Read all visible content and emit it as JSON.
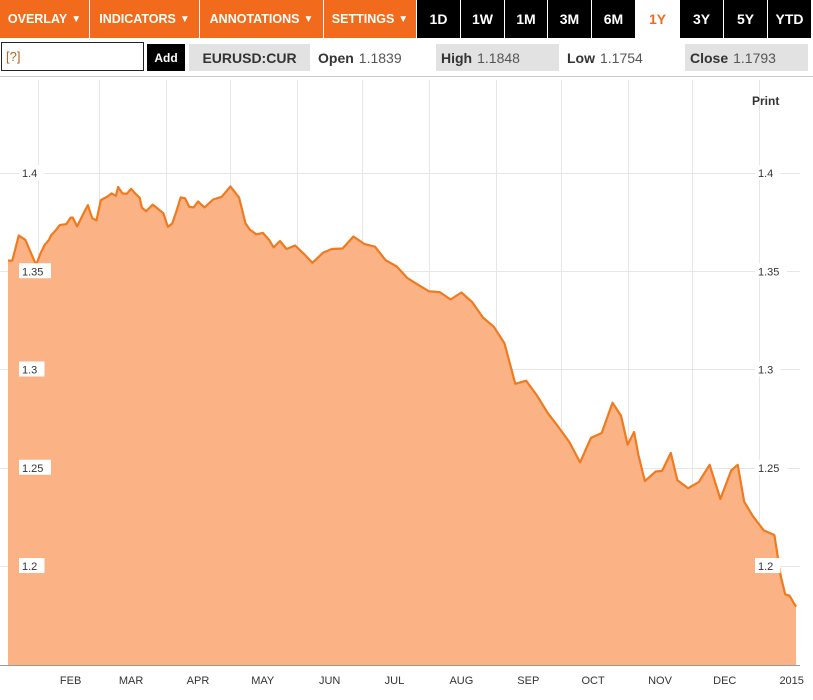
{
  "toolbar": {
    "menus": [
      {
        "label": "OVERLAY",
        "name": "overlay-menu-button"
      },
      {
        "label": "INDICATORS",
        "name": "indicators-menu-button"
      },
      {
        "label": "ANNOTATIONS",
        "name": "annotations-menu-button"
      },
      {
        "label": "SETTINGS",
        "name": "settings-menu-button"
      }
    ],
    "caret": "▼",
    "ranges": [
      "1D",
      "1W",
      "1M",
      "3M",
      "6M",
      "1Y",
      "3Y",
      "5Y",
      "YTD"
    ],
    "active_range": "1Y"
  },
  "quote": {
    "input_placeholder": "[?]",
    "add_label": "Add",
    "symbol": "EURUSD:CUR",
    "open_label": "Open",
    "open_value": "1.1839",
    "high_label": "High",
    "high_value": "1.1848",
    "low_label": "Low",
    "low_value": "1.1754",
    "close_label": "Close",
    "close_value": "1.1793"
  },
  "print_label": "Print",
  "colors": {
    "accent": "#f26b1d",
    "line": "#f07a1e",
    "fill": "#fbb285",
    "active_tab_text": "#f26b1d"
  },
  "chart_data": {
    "type": "area",
    "title": "",
    "xlabel": "",
    "ylabel": "",
    "ylim": [
      1.16,
      1.42
    ],
    "yticks": [
      "1.4",
      "1.35",
      "1.3",
      "1.25",
      "1.2"
    ],
    "ytick_values": [
      1.4,
      1.35,
      1.3,
      1.25,
      1.2
    ],
    "xticks": [
      "FEB",
      "MAR",
      "APR",
      "MAY",
      "JUN",
      "JUL",
      "AUG",
      "SEP",
      "OCT",
      "NOV",
      "DEC",
      "2015"
    ],
    "xtick_days": [
      29,
      57,
      88,
      118,
      149,
      179,
      210,
      241,
      271,
      302,
      332,
      363
    ],
    "grid": true,
    "series": [
      {
        "x": [
          0,
          2,
          5,
          8,
          13,
          15,
          17,
          19,
          20,
          22,
          24,
          27,
          29,
          30,
          32,
          35,
          37,
          39,
          41,
          43,
          46,
          48,
          50,
          51,
          53,
          55,
          57,
          59,
          61,
          62,
          64,
          67,
          69,
          72,
          74,
          76,
          78,
          80,
          82,
          84,
          86,
          88,
          91,
          95,
          99,
          103,
          107,
          110,
          112,
          115,
          118,
          121,
          123,
          126,
          129,
          133,
          137,
          141,
          146,
          150,
          155,
          160,
          165,
          170,
          175,
          180,
          185,
          190,
          195,
          200,
          205,
          210,
          215,
          220,
          225,
          230,
          235,
          240,
          245,
          250,
          255,
          260,
          265,
          270,
          275,
          280,
          284,
          287,
          290,
          292,
          295,
          300,
          303,
          307,
          310,
          315,
          320,
          325,
          330,
          335,
          338,
          341,
          345,
          350,
          355,
          358,
          360,
          362,
          365
        ],
        "y": [
          1.3554,
          1.3554,
          1.3682,
          1.366,
          1.3532,
          1.359,
          1.3634,
          1.366,
          1.3684,
          1.3707,
          1.3735,
          1.374,
          1.3773,
          1.3773,
          1.3728,
          1.3795,
          1.3836,
          1.377,
          1.3759,
          1.3862,
          1.388,
          1.3896,
          1.3884,
          1.3929,
          1.3896,
          1.3894,
          1.3919,
          1.3895,
          1.3874,
          1.3824,
          1.3805,
          1.3839,
          1.3822,
          1.3795,
          1.3726,
          1.3742,
          1.3805,
          1.3876,
          1.3872,
          1.3828,
          1.3825,
          1.3855,
          1.3825,
          1.3865,
          1.3879,
          1.3932,
          1.3876,
          1.3744,
          1.3712,
          1.3688,
          1.3695,
          1.3659,
          1.3622,
          1.3654,
          1.3613,
          1.3631,
          1.3589,
          1.3543,
          1.3595,
          1.3613,
          1.3616,
          1.3677,
          1.3639,
          1.3625,
          1.3555,
          1.3525,
          1.3465,
          1.3431,
          1.3398,
          1.3394,
          1.3356,
          1.3392,
          1.3343,
          1.3264,
          1.3218,
          1.3133,
          1.2927,
          1.2943,
          1.2868,
          1.2779,
          1.2707,
          1.2631,
          1.2527,
          1.2652,
          1.2677,
          1.2831,
          1.2764,
          1.2618,
          1.2682,
          1.2565,
          1.2432,
          1.2481,
          1.2484,
          1.2575,
          1.2437,
          1.2396,
          1.2427,
          1.2515,
          1.2341,
          1.2486,
          1.2515,
          1.2327,
          1.2254,
          1.2182,
          1.2157,
          1.1945,
          1.1856,
          1.1849,
          1.1793
        ]
      }
    ]
  }
}
